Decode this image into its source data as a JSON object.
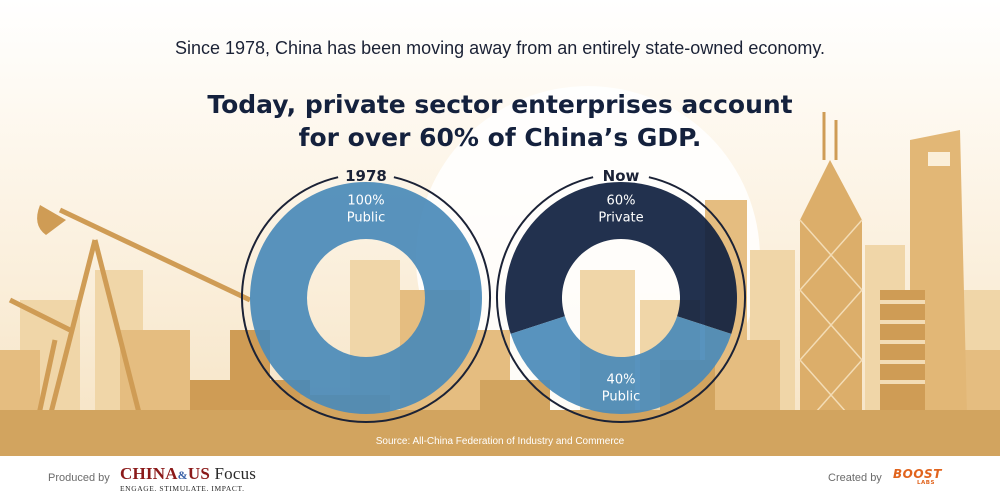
{
  "intro_text": "Since 1978, China has been moving away from an entirely state-owned economy.",
  "headline": {
    "line1": "Today, private sector enterprises account",
    "line2": "for over 60% of China’s GDP."
  },
  "colors": {
    "public": "#4a8ab8",
    "private": "#0f1f3f",
    "ring": "#1b2236",
    "skyline_light": "#efd2a0",
    "skyline_mid": "#e2b776",
    "skyline_dark": "#cf9c55",
    "logo_red": "#8b1a1a",
    "logo_orange": "#e1641d"
  },
  "chart_data": [
    {
      "type": "pie",
      "title": "1978",
      "slices": [
        {
          "label": "Public",
          "value": 100,
          "value_text": "100%",
          "color": "#4a8ab8"
        }
      ]
    },
    {
      "type": "pie",
      "title": "Now",
      "slices": [
        {
          "label": "Private",
          "value": 60,
          "value_text": "60%",
          "color": "#0f1f3f"
        },
        {
          "label": "Public",
          "value": 40,
          "value_text": "40%",
          "color": "#4a8ab8"
        }
      ]
    }
  ],
  "source": "Source: All-China Federation of Industry and Commerce",
  "footer": {
    "produced_by": "Produced by",
    "left_logo": {
      "part1": "CHINA",
      "symbol": "&",
      "part2": "US",
      "part3": "Focus",
      "tagline": "ENGAGE. STIMULATE. IMPACT."
    },
    "created_by": "Created by",
    "right_logo": {
      "name": "BOOST",
      "sub": "LABS"
    }
  }
}
